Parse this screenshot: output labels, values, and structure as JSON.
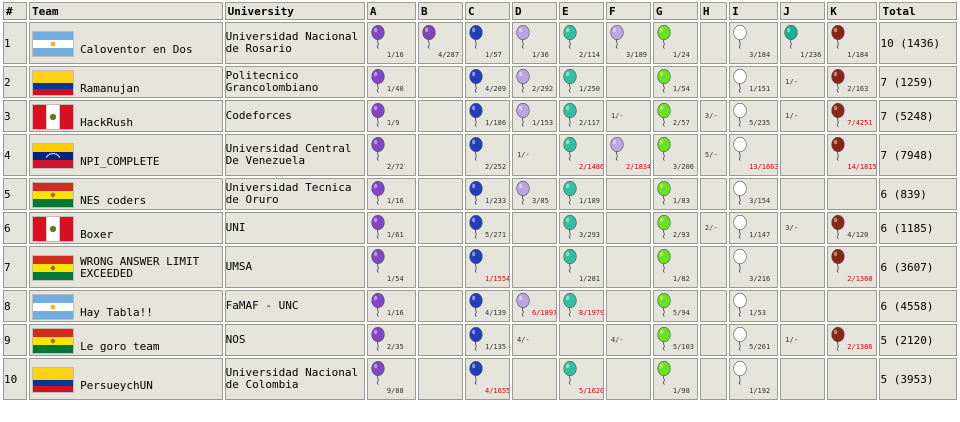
{
  "headers": {
    "rank": "#",
    "team": "Team",
    "university": "University",
    "problems": [
      "A",
      "B",
      "C",
      "D",
      "E",
      "F",
      "G",
      "H",
      "I",
      "J",
      "K"
    ],
    "total": "Total"
  },
  "balloon_colors": {
    "A": "#8244c8",
    "B": "#7c46b8",
    "C": "#1f3fbf",
    "D": "#b9a4e4",
    "E": "#2fc0a0",
    "F": "#b9a4e4",
    "G": "#66e41e",
    "H": "#ffffff",
    "I": "#ffffff",
    "J": "#16b090",
    "K": "#8b2416"
  },
  "flag_colors": {
    "argentina": [
      "#74acdf",
      "#ffffff",
      "#74acdf"
    ],
    "colombia": [
      "#fcd116",
      "#003893",
      "#ce1126"
    ],
    "peru": [
      "#d91023",
      "#ffffff",
      "#d91023"
    ],
    "venezuela": [
      "#ffcc00",
      "#00247d",
      "#cf142b"
    ],
    "bolivia": [
      "#d52b1e",
      "#f9e300",
      "#007934"
    ]
  },
  "rows": [
    {
      "rank": "1",
      "flag": "argentina",
      "team": "Caloventor en Dos",
      "university": "Universidad Nacional de Rosario",
      "total": "10 (1436)",
      "cells": [
        {
          "s": "1/16"
        },
        {
          "s": "4/287"
        },
        {
          "s": "1/57"
        },
        {
          "s": "1/36"
        },
        {
          "s": "2/114"
        },
        {
          "s": "3/189"
        },
        {
          "s": "1/24"
        },
        null,
        {
          "s": "3/184"
        },
        {
          "s": "1/236"
        },
        {
          "s": "1/184"
        }
      ]
    },
    {
      "rank": "2",
      "flag": "colombia",
      "team": "Ramanujan",
      "university": "Politecnico Grancolombiano",
      "total": "7 (1259)",
      "cells": [
        {
          "s": "1/40"
        },
        null,
        {
          "s": "4/209"
        },
        {
          "s": "2/292"
        },
        {
          "s": "1/250"
        },
        null,
        {
          "s": "1/54"
        },
        null,
        {
          "s": "1/151"
        },
        {
          "a": "1/-"
        },
        {
          "s": "2/163"
        }
      ]
    },
    {
      "rank": "3",
      "flag": "peru",
      "team": "HackRush",
      "university": "Codeforces",
      "total": "7 (5248)",
      "cells": [
        {
          "s": "1/9"
        },
        null,
        {
          "s": "1/186"
        },
        {
          "s": "1/153"
        },
        {
          "s": "2/117"
        },
        {
          "a": "1/-"
        },
        {
          "s": "2/57"
        },
        {
          "a": "3/-"
        },
        {
          "s": "5/235"
        },
        {
          "a": "1/-"
        },
        {
          "s": "7/4251",
          "bad": true
        }
      ]
    },
    {
      "rank": "4",
      "flag": "venezuela",
      "team": "NPI_COMPLETE",
      "university": "Universidad Central De Venezuela",
      "total": "7 (7948)",
      "cells": [
        {
          "s": "2/72"
        },
        null,
        {
          "s": "2/252"
        },
        {
          "a": "1/-"
        },
        {
          "s": "2/1486",
          "bad": true
        },
        {
          "s": "2/1834",
          "bad": true
        },
        {
          "s": "3/206"
        },
        {
          "a": "5/-"
        },
        {
          "s": "13/1663",
          "bad": true
        },
        null,
        {
          "s": "14/1815",
          "bad": true
        }
      ]
    },
    {
      "rank": "5",
      "flag": "bolivia",
      "team": "NES coders",
      "university": "Universidad Tecnica de Oruro",
      "total": "6 (839)",
      "cells": [
        {
          "s": "1/16"
        },
        null,
        {
          "s": "1/233"
        },
        {
          "s": "3/85"
        },
        {
          "s": "1/189"
        },
        null,
        {
          "s": "1/83"
        },
        null,
        {
          "s": "3/154"
        },
        null,
        null
      ]
    },
    {
      "rank": "6",
      "flag": "peru",
      "team": "Boxer",
      "university": "UNI",
      "total": "6 (1185)",
      "cells": [
        {
          "s": "1/61"
        },
        null,
        {
          "s": "5/271"
        },
        null,
        {
          "s": "3/293"
        },
        null,
        {
          "s": "2/93"
        },
        {
          "a": "2/-"
        },
        {
          "s": "1/147"
        },
        {
          "a": "3/-"
        },
        {
          "s": "4/120"
        }
      ]
    },
    {
      "rank": "7",
      "flag": "bolivia",
      "team": "WRONG ANSWER LIMIT EXCEEDED",
      "university": "UMSA",
      "total": "6 (3607)",
      "cells": [
        {
          "s": "1/54"
        },
        null,
        {
          "s": "1/1554",
          "bad": true
        },
        null,
        {
          "s": "1/281"
        },
        null,
        {
          "s": "1/82"
        },
        null,
        {
          "s": "3/216"
        },
        null,
        {
          "s": "2/1360",
          "bad": true
        }
      ]
    },
    {
      "rank": "8",
      "flag": "argentina",
      "team": "Hay Tabla!!",
      "university": "FaMAF - UNC",
      "total": "6 (4558)",
      "cells": [
        {
          "s": "1/16"
        },
        null,
        {
          "s": "4/139"
        },
        {
          "s": "6/1897",
          "bad": true
        },
        {
          "s": "8/1979",
          "bad": true
        },
        null,
        {
          "s": "5/94"
        },
        null,
        {
          "s": "1/53"
        },
        null,
        null
      ]
    },
    {
      "rank": "9",
      "flag": "bolivia",
      "team": "Le goro team",
      "university": "NOS",
      "total": "5 (2120)",
      "cells": [
        {
          "s": "2/35"
        },
        null,
        {
          "s": "1/135"
        },
        {
          "a": "4/-"
        },
        null,
        {
          "a": "4/-"
        },
        {
          "s": "5/103"
        },
        null,
        {
          "s": "5/261"
        },
        {
          "a": "1/-"
        },
        {
          "s": "2/1386",
          "bad": true
        }
      ]
    },
    {
      "rank": "10",
      "flag": "colombia",
      "team": "PersueychUN",
      "university": "Universidad Nacional de Colombia",
      "total": "5 (3953)",
      "cells": [
        {
          "s": "9/88"
        },
        null,
        {
          "s": "4/1655",
          "bad": true
        },
        null,
        {
          "s": "5/1620",
          "bad": true
        },
        null,
        {
          "s": "1/98"
        },
        null,
        {
          "s": "1/192"
        },
        null,
        null
      ]
    }
  ]
}
